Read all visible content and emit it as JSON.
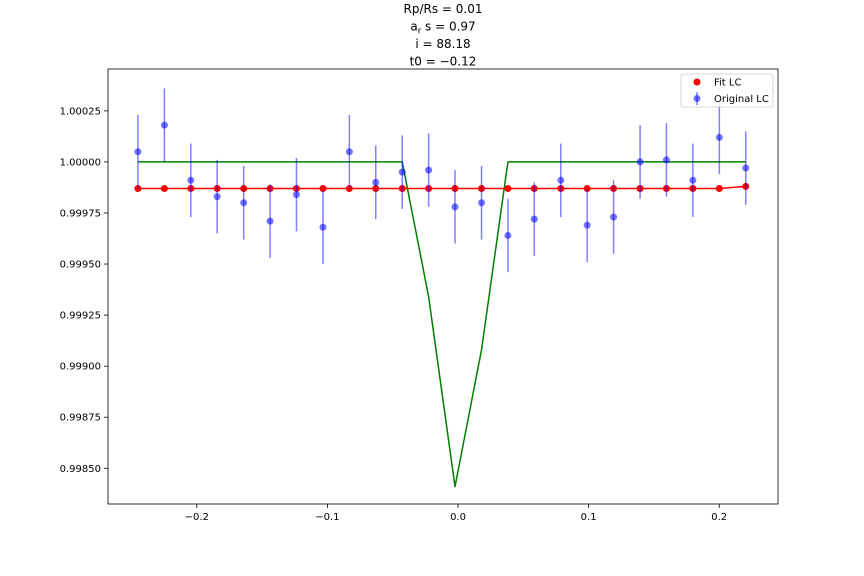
{
  "chart_data": {
    "type": "scatter",
    "title_lines": [
      "Rp/Rs = 0.01",
      "a_r s = 0.97",
      "i = 88.18",
      "t0 = −0.12"
    ],
    "xlim": [
      -0.268,
      0.245
    ],
    "ylim": [
      0.998325,
      1.000455
    ],
    "x_ticks": [
      -0.2,
      -0.1,
      0.0,
      0.1,
      0.2
    ],
    "x_tick_labels": [
      "−0.2",
      "−0.1",
      "0.0",
      "0.1",
      "0.2"
    ],
    "y_ticks": [
      0.9985,
      0.99875,
      0.999,
      0.99925,
      0.9995,
      0.99975,
      1.0,
      1.00025
    ],
    "y_tick_labels": [
      "0.99850",
      "0.99875",
      "0.99900",
      "0.99925",
      "0.99950",
      "0.99975",
      "1.00000",
      "1.00025"
    ],
    "grid": false,
    "legend_position": "top-right",
    "series": [
      {
        "name": "Original LC",
        "kind": "errorbar",
        "color": "#0000ff",
        "x": [
          -0.2451,
          -0.2248,
          -0.2046,
          -0.1844,
          -0.1641,
          -0.1439,
          -0.1237,
          -0.1034,
          -0.0832,
          -0.063,
          -0.0427,
          -0.0225,
          -0.0023,
          0.018,
          0.0382,
          0.0584,
          0.0787,
          0.0989,
          0.1191,
          0.1394,
          0.1596,
          0.1798,
          0.2001,
          0.2203
        ],
        "y": [
          1.00005,
          1.00018,
          0.99991,
          0.99983,
          0.9998,
          0.99971,
          0.99984,
          0.99968,
          1.00005,
          0.9999,
          0.99995,
          0.99996,
          0.99978,
          0.9998,
          0.99964,
          0.99972,
          0.99991,
          0.99969,
          0.99973,
          1.0,
          1.00001,
          0.99991,
          1.00012,
          0.99997
        ],
        "yerr": [
          0.00018,
          0.00018,
          0.00018,
          0.00018,
          0.00018,
          0.00018,
          0.00018,
          0.00018,
          0.00018,
          0.00018,
          0.00018,
          0.00018,
          0.00018,
          0.00018,
          0.00018,
          0.00018,
          0.00018,
          0.00018,
          0.00018,
          0.00018,
          0.00018,
          0.00018,
          0.00018,
          0.00018
        ]
      },
      {
        "name": "Fit LC",
        "kind": "scatter-line",
        "color": "#ff0000",
        "x": [
          -0.2451,
          -0.2248,
          -0.2046,
          -0.1844,
          -0.1641,
          -0.1439,
          -0.1237,
          -0.1034,
          -0.0832,
          -0.063,
          -0.0427,
          -0.0225,
          -0.0023,
          0.018,
          0.0382,
          0.0584,
          0.0787,
          0.0989,
          0.1191,
          0.1394,
          0.1596,
          0.1798,
          0.2001,
          0.2203
        ],
        "y": [
          0.99987,
          0.99987,
          0.99987,
          0.99987,
          0.99987,
          0.99987,
          0.99987,
          0.99987,
          0.99987,
          0.99987,
          0.99987,
          0.99987,
          0.99987,
          0.99987,
          0.99987,
          0.99987,
          0.99987,
          0.99987,
          0.99987,
          0.99987,
          0.99987,
          0.99987,
          0.99987,
          0.99988
        ]
      },
      {
        "kind": "line",
        "color": "#008000",
        "x": [
          -0.2451,
          -0.0427,
          -0.0225,
          -0.0023,
          0.018,
          0.0382,
          0.2203
        ],
        "y": [
          1.0,
          1.0,
          0.99934,
          0.99841,
          0.99908,
          1.0,
          1.0
        ]
      }
    ]
  }
}
